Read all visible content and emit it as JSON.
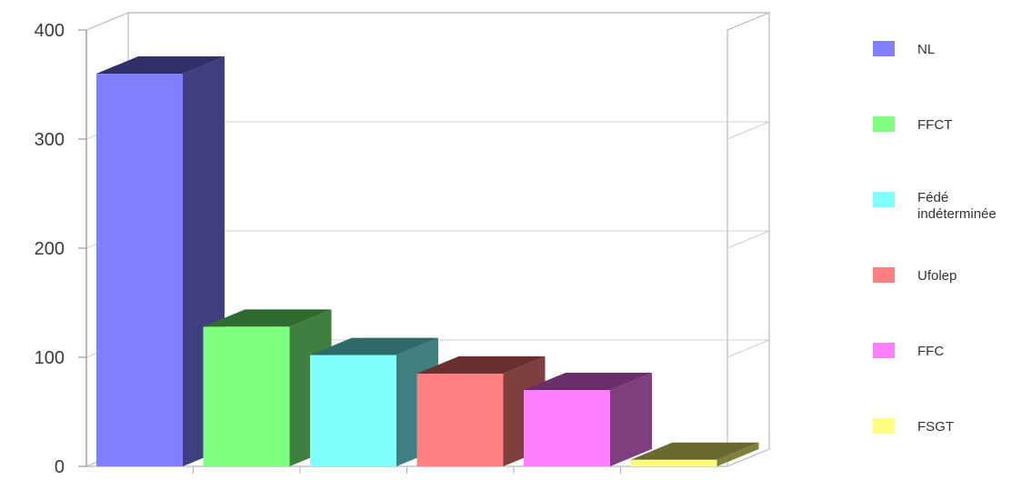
{
  "chart_data": {
    "type": "bar",
    "categories": [
      "NL",
      "FFCT",
      "Fédé indéterminée",
      "Ufolep",
      "FFC",
      "FSGT"
    ],
    "values": [
      360,
      128,
      102,
      85,
      70,
      6
    ],
    "ylim": [
      0,
      400
    ],
    "yticks": [
      0,
      100,
      200,
      300,
      400
    ],
    "ytick_labels": [
      "0",
      "100",
      "200",
      "300",
      "400"
    ],
    "grid": true,
    "three_d": true,
    "legend_position": "right",
    "legend": [
      {
        "label": "NL",
        "color": "#8080ff",
        "side_color": "#3f3f7f",
        "top_color": "#2f2f6a"
      },
      {
        "label": "FFCT",
        "color": "#80ff80",
        "side_color": "#3f7f3f",
        "top_color": "#2f6a2f"
      },
      {
        "label": "Fédé indéterminée",
        "color": "#80ffff",
        "side_color": "#3f7f7f",
        "top_color": "#2f6a6a"
      },
      {
        "label": "Ufolep",
        "color": "#ff8080",
        "side_color": "#7f3f3f",
        "top_color": "#6a2f2f"
      },
      {
        "label": "FFC",
        "color": "#ff80ff",
        "side_color": "#7f3f7f",
        "top_color": "#6a2f6a"
      },
      {
        "label": "FSGT",
        "color": "#ffff80",
        "side_color": "#7f7f3f",
        "top_color": "#6a6a2f"
      }
    ]
  }
}
